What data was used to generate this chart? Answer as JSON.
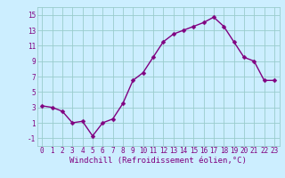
{
  "x": [
    0,
    1,
    2,
    3,
    4,
    5,
    6,
    7,
    8,
    9,
    10,
    11,
    12,
    13,
    14,
    15,
    16,
    17,
    18,
    19,
    20,
    21,
    22,
    23
  ],
  "y": [
    3.2,
    3.0,
    2.5,
    1.0,
    1.2,
    -0.7,
    1.0,
    1.5,
    3.5,
    6.5,
    7.5,
    9.5,
    11.5,
    12.5,
    13.0,
    13.5,
    14.0,
    14.7,
    13.5,
    11.5,
    9.5,
    9.0,
    6.5,
    6.5
  ],
  "line_color": "#800080",
  "marker_color": "#800080",
  "bg_color": "#cceeff",
  "grid_color": "#99cccc",
  "xlabel": "Windchill (Refroidissement éolien,°C)",
  "xlim": [
    -0.5,
    23.5
  ],
  "ylim": [
    -2,
    16
  ],
  "yticks": [
    -1,
    1,
    3,
    5,
    7,
    9,
    11,
    13,
    15
  ],
  "xticks": [
    0,
    1,
    2,
    3,
    4,
    5,
    6,
    7,
    8,
    9,
    10,
    11,
    12,
    13,
    14,
    15,
    16,
    17,
    18,
    19,
    20,
    21,
    22,
    23
  ],
  "tick_label_fontsize": 5.5,
  "xlabel_fontsize": 6.5,
  "line_width": 1.0,
  "marker_size": 2.5
}
